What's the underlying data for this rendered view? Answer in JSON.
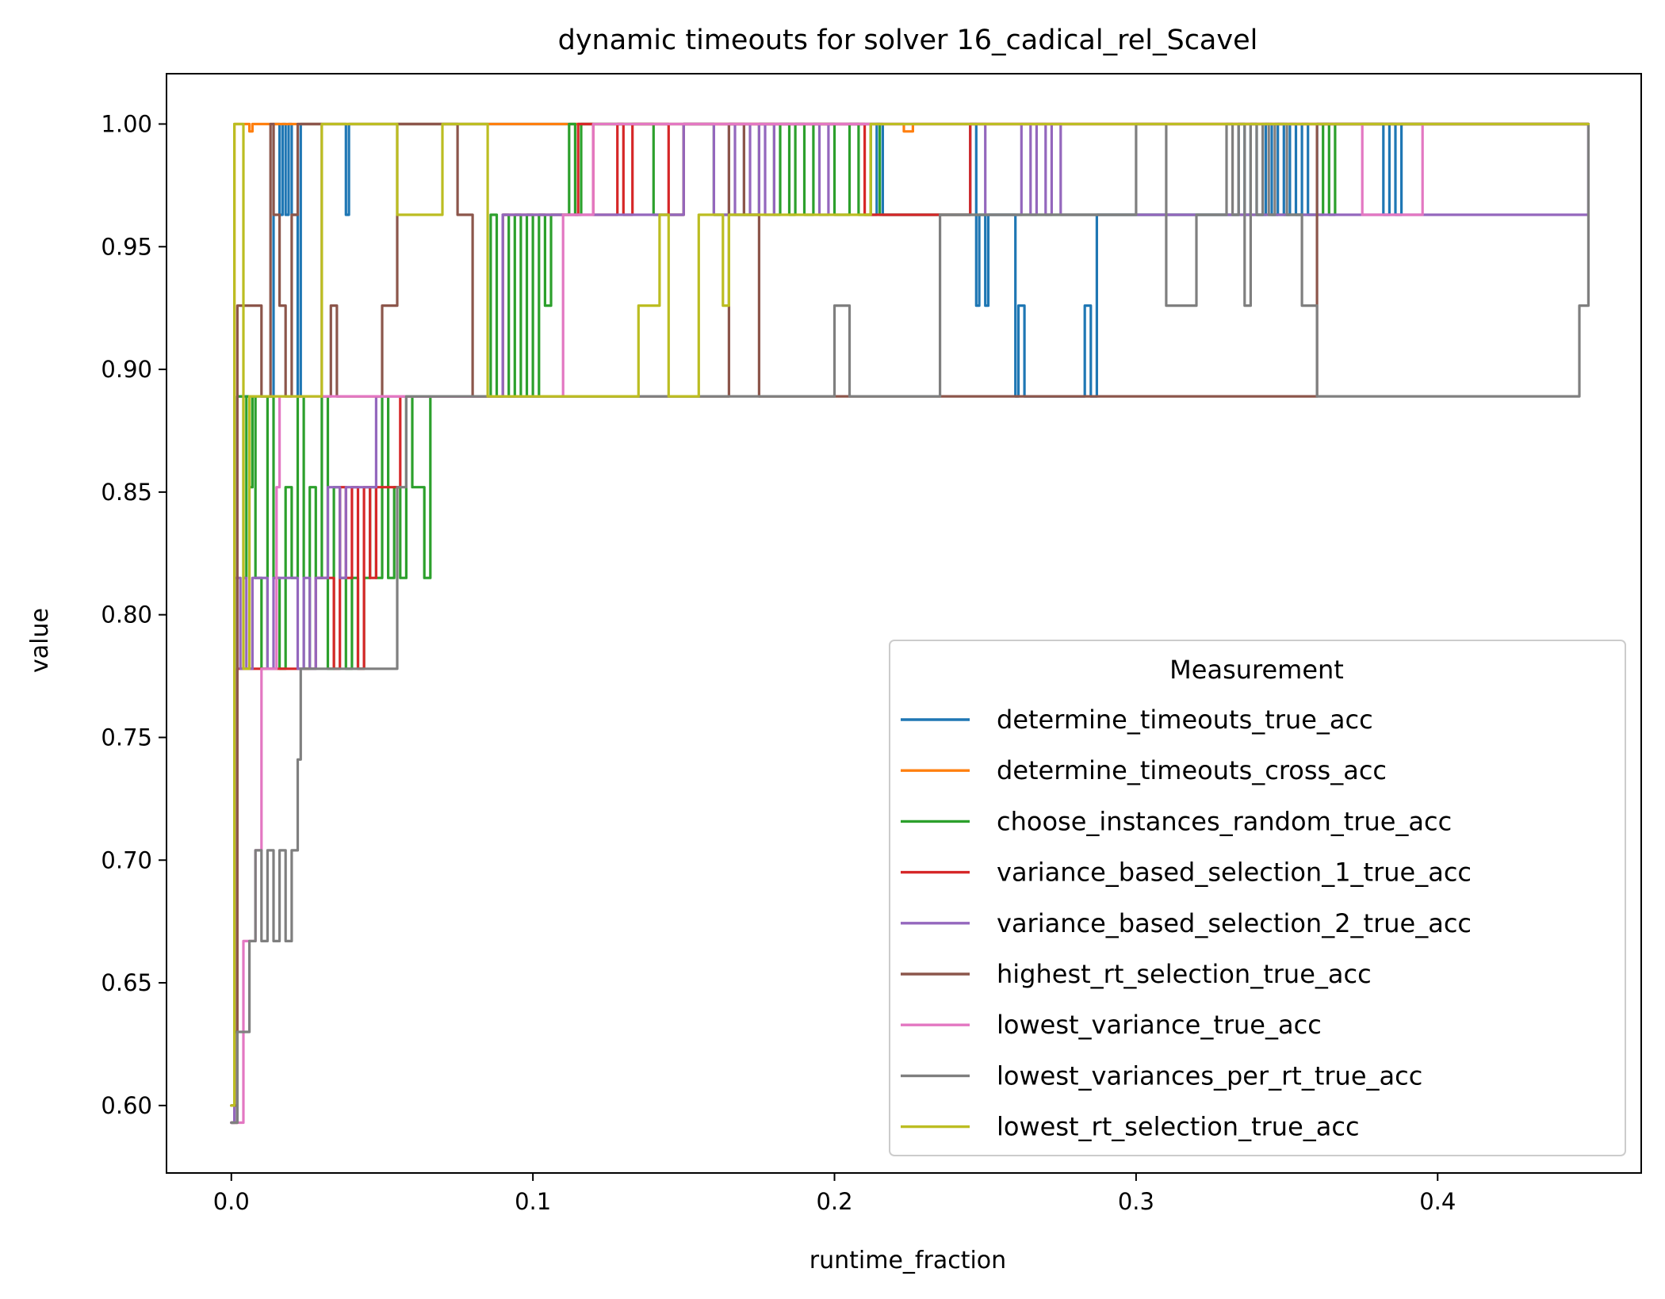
{
  "chart_data": {
    "type": "line",
    "title": "dynamic timeouts for solver 16_cadical_rel_Scavel",
    "xlabel": "runtime_fraction",
    "ylabel": "value",
    "xlim": [
      -0.0215,
      0.4675
    ],
    "ylim": [
      0.5725,
      1.0205
    ],
    "xticks": [
      0.0,
      0.1,
      0.2,
      0.3,
      0.4
    ],
    "xtick_labels": [
      "0.0",
      "0.1",
      "0.2",
      "0.3",
      "0.4"
    ],
    "yticks": [
      0.6,
      0.65,
      0.7,
      0.75,
      0.8,
      0.85,
      0.9,
      0.95,
      1.0
    ],
    "ytick_labels": [
      "0.60",
      "0.65",
      "0.70",
      "0.75",
      "0.80",
      "0.85",
      "0.90",
      "0.95",
      "1.00"
    ],
    "grid": false,
    "legend": {
      "title": "Measurement",
      "placement": "lower right"
    },
    "series": [
      {
        "name": "determine_timeouts_true_acc",
        "color": "#1f77b4",
        "x": [
          0,
          0.001,
          0.002,
          0.004,
          0.008,
          0.011,
          0.013,
          0.014,
          0.016,
          0.017,
          0.018,
          0.019,
          0.02,
          0.022,
          0.023,
          0.025,
          0.035,
          0.038,
          0.039,
          0.04,
          0.06,
          0.1,
          0.15,
          0.2,
          0.21,
          0.212,
          0.214,
          0.216,
          0.22,
          0.24,
          0.245,
          0.247,
          0.248,
          0.25,
          0.251,
          0.253,
          0.255,
          0.26,
          0.261,
          0.263,
          0.265,
          0.28,
          0.283,
          0.285,
          0.287,
          0.29,
          0.33,
          0.334,
          0.336,
          0.338,
          0.34,
          0.343,
          0.345,
          0.347,
          0.349,
          0.351,
          0.353,
          0.355,
          0.357,
          0.36,
          0.38,
          0.382,
          0.384,
          0.386,
          0.388,
          0.45
        ],
        "y": [
          0.593,
          0.63,
          0.889,
          0.889,
          0.889,
          0.889,
          0.889,
          1.0,
          0.963,
          1.0,
          0.963,
          1.0,
          0.963,
          0.889,
          1.0,
          1.0,
          1.0,
          0.963,
          1.0,
          1.0,
          1.0,
          1.0,
          1.0,
          1.0,
          1.0,
          0.963,
          1.0,
          0.963,
          0.963,
          0.963,
          1.0,
          0.926,
          0.963,
          0.926,
          0.963,
          0.963,
          0.963,
          0.889,
          0.926,
          0.889,
          0.889,
          0.889,
          0.926,
          0.889,
          0.963,
          0.963,
          0.963,
          1.0,
          0.963,
          1.0,
          0.963,
          1.0,
          0.963,
          1.0,
          0.963,
          1.0,
          0.963,
          1.0,
          0.963,
          1.0,
          1.0,
          0.963,
          1.0,
          0.963,
          1.0,
          1.0
        ]
      },
      {
        "name": "determine_timeouts_cross_acc",
        "color": "#ff7f0e",
        "x": [
          0,
          0.001,
          0.002,
          0.005,
          0.006,
          0.007,
          0.01,
          0.1,
          0.22,
          0.223,
          0.226,
          0.45
        ],
        "y": [
          0.6,
          1.0,
          1.0,
          1.0,
          0.997,
          1.0,
          1.0,
          1.0,
          1.0,
          0.997,
          1.0,
          1.0
        ]
      },
      {
        "name": "choose_instances_random_true_acc",
        "color": "#2ca02c",
        "x": [
          0,
          0.002,
          0.004,
          0.005,
          0.006,
          0.007,
          0.008,
          0.01,
          0.012,
          0.014,
          0.016,
          0.018,
          0.02,
          0.022,
          0.024,
          0.026,
          0.028,
          0.03,
          0.032,
          0.034,
          0.036,
          0.038,
          0.04,
          0.042,
          0.044,
          0.046,
          0.048,
          0.05,
          0.052,
          0.054,
          0.056,
          0.058,
          0.06,
          0.062,
          0.064,
          0.066,
          0.084,
          0.086,
          0.088,
          0.09,
          0.092,
          0.094,
          0.096,
          0.098,
          0.1,
          0.102,
          0.104,
          0.106,
          0.11,
          0.112,
          0.114,
          0.116,
          0.12,
          0.14,
          0.15,
          0.16,
          0.175,
          0.18,
          0.182,
          0.185,
          0.187,
          0.19,
          0.193,
          0.2,
          0.205,
          0.208,
          0.21,
          0.212,
          0.215,
          0.22,
          0.26,
          0.3,
          0.35,
          0.36,
          0.362,
          0.364,
          0.366,
          0.45
        ],
        "y": [
          0.593,
          0.889,
          0.815,
          0.889,
          0.852,
          0.889,
          0.815,
          0.778,
          0.889,
          0.815,
          0.778,
          0.852,
          0.815,
          0.889,
          0.778,
          0.852,
          0.815,
          0.889,
          0.778,
          0.852,
          0.815,
          0.778,
          0.815,
          0.778,
          0.815,
          0.852,
          0.815,
          0.889,
          0.815,
          0.852,
          0.815,
          0.889,
          0.852,
          0.852,
          0.815,
          0.889,
          0.889,
          0.963,
          0.889,
          0.963,
          0.889,
          0.963,
          0.889,
          0.963,
          0.889,
          0.963,
          0.926,
          0.963,
          0.963,
          1.0,
          0.963,
          1.0,
          1.0,
          0.963,
          1.0,
          0.963,
          1.0,
          0.963,
          1.0,
          0.963,
          1.0,
          0.963,
          1.0,
          0.963,
          1.0,
          0.963,
          0.963,
          1.0,
          0.963,
          0.963,
          0.963,
          0.963,
          0.963,
          0.963,
          1.0,
          0.963,
          1.0,
          1.0
        ]
      },
      {
        "name": "variance_based_selection_1_true_acc",
        "color": "#d62728",
        "x": [
          0,
          0.002,
          0.02,
          0.024,
          0.028,
          0.032,
          0.034,
          0.036,
          0.038,
          0.04,
          0.042,
          0.044,
          0.046,
          0.048,
          0.05,
          0.052,
          0.054,
          0.056,
          0.058,
          0.06,
          0.085,
          0.09,
          0.095,
          0.1,
          0.11,
          0.115,
          0.12,
          0.125,
          0.128,
          0.13,
          0.133,
          0.14,
          0.145,
          0.15,
          0.2,
          0.21,
          0.215,
          0.22,
          0.24,
          0.245,
          0.25,
          0.26,
          0.3,
          0.45
        ],
        "y": [
          0.593,
          0.778,
          0.778,
          0.778,
          0.815,
          0.815,
          0.778,
          0.852,
          0.815,
          0.852,
          0.778,
          0.852,
          0.815,
          0.852,
          0.852,
          0.852,
          0.852,
          0.889,
          0.889,
          0.889,
          0.889,
          0.963,
          0.963,
          0.963,
          0.963,
          1.0,
          0.963,
          0.963,
          1.0,
          0.963,
          1.0,
          1.0,
          0.963,
          1.0,
          1.0,
          0.963,
          0.963,
          0.963,
          0.963,
          1.0,
          1.0,
          1.0,
          1.0,
          1.0
        ]
      },
      {
        "name": "variance_based_selection_2_true_acc",
        "color": "#9467bd",
        "x": [
          0,
          0.001,
          0.003,
          0.004,
          0.005,
          0.007,
          0.012,
          0.014,
          0.016,
          0.022,
          0.024,
          0.026,
          0.028,
          0.03,
          0.032,
          0.034,
          0.036,
          0.038,
          0.04,
          0.042,
          0.044,
          0.046,
          0.048,
          0.05,
          0.085,
          0.09,
          0.1,
          0.11,
          0.15,
          0.16,
          0.165,
          0.167,
          0.17,
          0.172,
          0.175,
          0.177,
          0.18,
          0.19,
          0.195,
          0.198,
          0.2,
          0.25,
          0.26,
          0.262,
          0.265,
          0.267,
          0.27,
          0.272,
          0.275,
          0.28,
          0.31,
          0.35,
          0.45
        ],
        "y": [
          0.593,
          0.815,
          0.778,
          0.815,
          0.778,
          0.815,
          0.778,
          0.815,
          0.815,
          0.778,
          0.815,
          0.778,
          0.815,
          0.815,
          0.852,
          0.852,
          0.815,
          0.852,
          0.852,
          0.852,
          0.852,
          0.852,
          0.889,
          0.889,
          0.889,
          0.963,
          0.963,
          0.963,
          1.0,
          0.963,
          1.0,
          0.963,
          1.0,
          0.963,
          1.0,
          0.963,
          1.0,
          1.0,
          0.963,
          1.0,
          1.0,
          0.963,
          0.963,
          1.0,
          0.963,
          1.0,
          0.963,
          1.0,
          0.963,
          0.963,
          0.963,
          0.963,
          1.0
        ]
      },
      {
        "name": "highest_rt_selection_true_acc",
        "color": "#8c564b",
        "x": [
          0,
          0.002,
          0.006,
          0.01,
          0.013,
          0.014,
          0.016,
          0.018,
          0.02,
          0.022,
          0.024,
          0.026,
          0.03,
          0.033,
          0.035,
          0.04,
          0.045,
          0.05,
          0.055,
          0.06,
          0.065,
          0.07,
          0.075,
          0.08,
          0.085,
          0.09,
          0.1,
          0.12,
          0.15,
          0.16,
          0.165,
          0.17,
          0.175,
          0.2,
          0.25,
          0.3,
          0.35,
          0.357,
          0.36,
          0.362,
          0.45
        ],
        "y": [
          0.6,
          0.926,
          0.926,
          0.889,
          1.0,
          0.963,
          0.926,
          0.889,
          0.963,
          1.0,
          1.0,
          1.0,
          0.889,
          0.926,
          0.889,
          0.889,
          0.889,
          0.926,
          1.0,
          1.0,
          1.0,
          1.0,
          0.963,
          0.889,
          0.889,
          0.889,
          0.889,
          0.889,
          0.889,
          0.889,
          1.0,
          0.963,
          0.889,
          0.889,
          0.889,
          0.889,
          0.889,
          0.889,
          1.0,
          1.0,
          1.0
        ]
      },
      {
        "name": "lowest_variance_true_acc",
        "color": "#e377c2",
        "x": [
          0,
          0.004,
          0.008,
          0.01,
          0.012,
          0.014,
          0.015,
          0.016,
          0.018,
          0.02,
          0.03,
          0.04,
          0.05,
          0.06,
          0.07,
          0.1,
          0.105,
          0.11,
          0.115,
          0.12,
          0.2,
          0.3,
          0.37,
          0.375,
          0.38,
          0.385,
          0.39,
          0.395,
          0.45
        ],
        "y": [
          0.593,
          0.667,
          0.704,
          0.778,
          0.778,
          0.778,
          0.852,
          0.889,
          0.889,
          0.889,
          0.889,
          0.889,
          0.889,
          0.889,
          0.889,
          0.889,
          0.889,
          0.963,
          0.963,
          1.0,
          1.0,
          1.0,
          1.0,
          0.963,
          0.963,
          0.963,
          0.963,
          1.0,
          1.0
        ]
      },
      {
        "name": "lowest_variances_per_rt_true_acc",
        "color": "#7f7f7f",
        "x": [
          0,
          0.002,
          0.006,
          0.008,
          0.01,
          0.012,
          0.014,
          0.016,
          0.018,
          0.02,
          0.022,
          0.023,
          0.024,
          0.026,
          0.03,
          0.04,
          0.05,
          0.055,
          0.058,
          0.06,
          0.065,
          0.08,
          0.1,
          0.15,
          0.19,
          0.2,
          0.205,
          0.21,
          0.23,
          0.235,
          0.24,
          0.25,
          0.28,
          0.3,
          0.31,
          0.315,
          0.32,
          0.33,
          0.332,
          0.334,
          0.336,
          0.338,
          0.34,
          0.342,
          0.344,
          0.346,
          0.35,
          0.352,
          0.355,
          0.357,
          0.36,
          0.365,
          0.37,
          0.38,
          0.4,
          0.44,
          0.446,
          0.447,
          0.45
        ],
        "y": [
          0.593,
          0.63,
          0.667,
          0.704,
          0.667,
          0.704,
          0.667,
          0.704,
          0.667,
          0.704,
          0.741,
          0.778,
          0.778,
          0.778,
          0.778,
          0.778,
          0.778,
          0.852,
          0.889,
          0.889,
          0.889,
          0.889,
          0.889,
          0.889,
          0.889,
          0.926,
          0.889,
          0.889,
          0.889,
          0.963,
          0.963,
          0.963,
          0.963,
          1.0,
          0.926,
          0.926,
          0.963,
          1.0,
          0.963,
          1.0,
          0.926,
          1.0,
          0.963,
          1.0,
          0.963,
          1.0,
          0.963,
          0.963,
          0.926,
          0.926,
          0.889,
          0.889,
          0.889,
          0.889,
          0.889,
          0.889,
          0.889,
          0.926,
          1.0
        ]
      },
      {
        "name": "lowest_rt_selection_true_acc",
        "color": "#bcbd22",
        "x": [
          0,
          0.001,
          0.004,
          0.006,
          0.008,
          0.01,
          0.015,
          0.02,
          0.03,
          0.04,
          0.05,
          0.055,
          0.06,
          0.065,
          0.07,
          0.08,
          0.085,
          0.09,
          0.12,
          0.13,
          0.135,
          0.14,
          0.142,
          0.145,
          0.15,
          0.155,
          0.16,
          0.163,
          0.165,
          0.17,
          0.2,
          0.21,
          0.212,
          0.215,
          0.25,
          0.3,
          0.45
        ],
        "y": [
          0.6,
          1.0,
          0.778,
          0.889,
          0.889,
          0.889,
          0.889,
          0.889,
          1.0,
          1.0,
          1.0,
          0.963,
          0.963,
          0.963,
          1.0,
          1.0,
          0.889,
          0.889,
          0.889,
          0.889,
          0.926,
          0.926,
          0.963,
          0.889,
          0.889,
          0.963,
          0.963,
          0.926,
          0.963,
          0.963,
          0.963,
          0.963,
          1.0,
          1.0,
          1.0,
          1.0,
          1.0
        ]
      }
    ]
  }
}
